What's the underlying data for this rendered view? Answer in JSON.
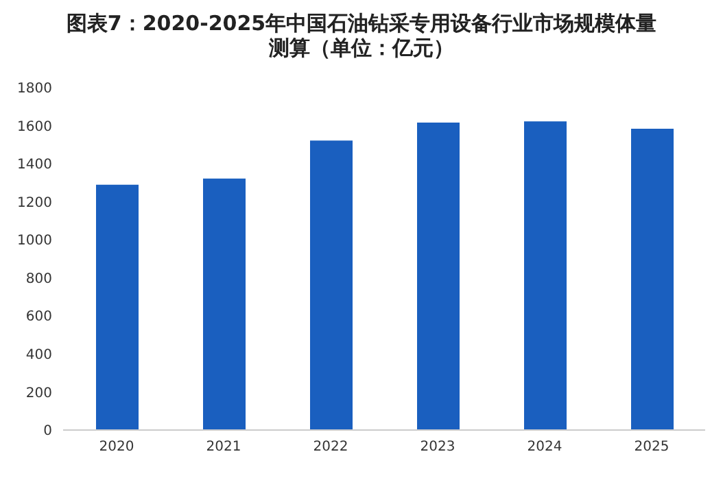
{
  "chart_data": {
    "type": "bar",
    "title": "图表7：2020-2025年中国石油钻采专用设备行业市场规模体量测算（单位：亿元）",
    "categories": [
      "2020",
      "2021",
      "2022",
      "2023",
      "2024",
      "2025"
    ],
    "values": [
      1290,
      1322,
      1522,
      1616,
      1623,
      1584
    ],
    "color": "#1a5fbf",
    "ylim": [
      0,
      1800
    ],
    "yticks": [
      0,
      200,
      400,
      600,
      800,
      1000,
      1200,
      1400,
      1600,
      1800
    ],
    "grid": false
  }
}
